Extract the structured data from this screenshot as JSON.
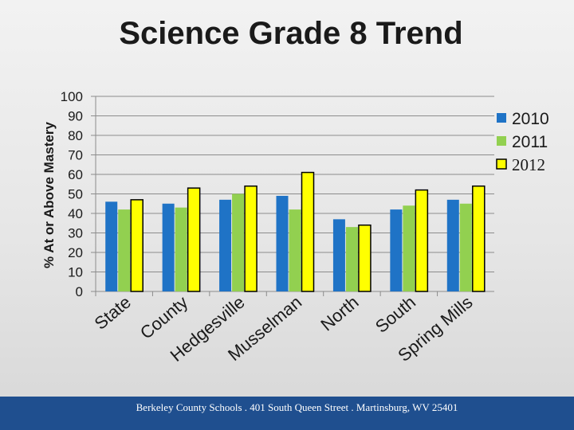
{
  "title": "Science Grade 8 Trend",
  "footer": "Berkeley County Schools . 401 South Queen Street . Martinsburg, WV  25401",
  "chart_data": {
    "type": "bar",
    "title": "Science Grade 8 Trend",
    "xlabel": "",
    "ylabel": "% At or Above Mastery",
    "ylim": [
      0,
      100
    ],
    "yticks": [
      0,
      10,
      20,
      30,
      40,
      50,
      60,
      70,
      80,
      90,
      100
    ],
    "grid": true,
    "legend_position": "right",
    "categories": [
      "State",
      "County",
      "Hedgesville",
      "Musselman",
      "North",
      "South",
      "Spring Mills"
    ],
    "series": [
      {
        "name": "2010",
        "color": "#1f73c6",
        "values": [
          46,
          45,
          47,
          49,
          37,
          42,
          47
        ]
      },
      {
        "name": "2011",
        "color": "#92d050",
        "values": [
          42,
          43,
          50,
          42,
          33,
          44,
          45
        ]
      },
      {
        "name": "2012",
        "color": "#ffff00",
        "values": [
          47,
          53,
          54,
          61,
          34,
          52,
          54
        ]
      }
    ]
  }
}
